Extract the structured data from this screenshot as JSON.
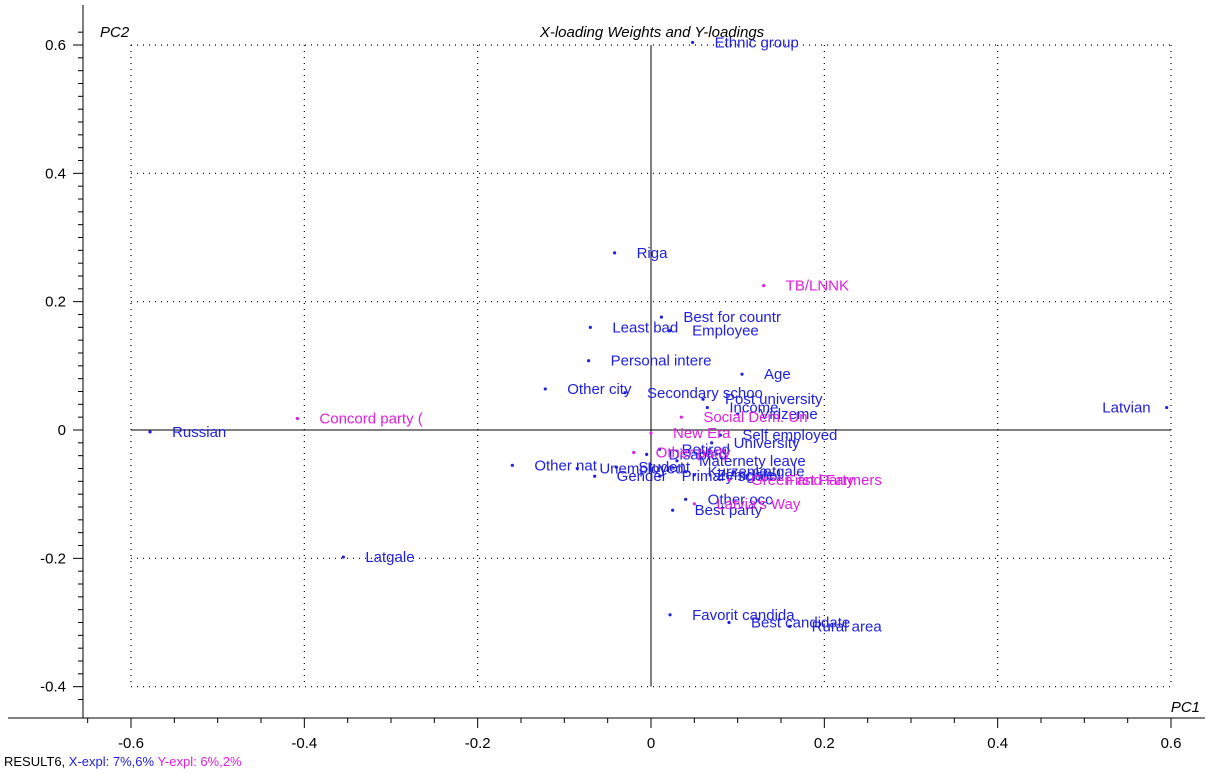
{
  "chart_data": {
    "type": "scatter",
    "title": "X-loading Weights and Y-loadings",
    "xlabel": "PC1",
    "ylabel": "PC2",
    "xlim": [
      -0.66,
      0.62
    ],
    "ylim": [
      -0.42,
      0.62
    ],
    "xticks": [
      -0.6,
      -0.4,
      -0.2,
      0,
      0.2,
      0.4,
      0.6
    ],
    "xtick_labels": [
      "-0.6",
      "-0.4",
      "-0.2",
      "0",
      "0.2",
      "0.4",
      "0.6"
    ],
    "yticks": [
      -0.4,
      -0.2,
      0,
      0.2,
      0.4,
      0.6
    ],
    "ytick_labels": [
      "-0.4",
      "-0.2",
      "0",
      "0.2",
      "0.4",
      "0.6"
    ],
    "grid": true,
    "colors": {
      "x": "#2020e0",
      "y": "#e020e0"
    },
    "series": [
      {
        "name": "X-expl",
        "color": "#2020e0",
        "points": [
          {
            "label": "Ethnic group",
            "x": 0.048,
            "y": 0.604
          },
          {
            "label": "Riga",
            "x": -0.042,
            "y": 0.276
          },
          {
            "label": "Best for countr",
            "x": 0.012,
            "y": 0.176
          },
          {
            "label": "Least bad",
            "x": -0.07,
            "y": 0.16
          },
          {
            "label": "Employee",
            "x": 0.022,
            "y": 0.155
          },
          {
            "label": "Personal intere",
            "x": -0.072,
            "y": 0.108
          },
          {
            "label": "Age",
            "x": 0.105,
            "y": 0.087
          },
          {
            "label": "Other city",
            "x": -0.122,
            "y": 0.064
          },
          {
            "label": "Secondary schoo",
            "x": -0.03,
            "y": 0.058
          },
          {
            "label": "Post university",
            "x": 0.06,
            "y": 0.048
          },
          {
            "label": "Income",
            "x": 0.065,
            "y": 0.035
          },
          {
            "label": "Vidzeme",
            "x": 0.1,
            "y": 0.025
          },
          {
            "label": "Latvian",
            "x": 0.595,
            "y": 0.035
          },
          {
            "label": "Russian",
            "x": -0.578,
            "y": -0.003
          },
          {
            "label": "Self employed",
            "x": 0.08,
            "y": -0.008
          },
          {
            "label": "University",
            "x": 0.07,
            "y": -0.02
          },
          {
            "label": "Retired",
            "x": 0.01,
            "y": -0.03
          },
          {
            "label": "Disabled",
            "x": -0.005,
            "y": -0.038
          },
          {
            "label": "Maternety leave",
            "x": 0.03,
            "y": -0.048
          },
          {
            "label": "Other nat",
            "x": -0.16,
            "y": -0.055
          },
          {
            "label": "Unemployed",
            "x": -0.085,
            "y": -0.06
          },
          {
            "label": "Student",
            "x": -0.04,
            "y": -0.058
          },
          {
            "label": "Kurzeme",
            "x": 0.04,
            "y": -0.065
          },
          {
            "label": "Latgale",
            "x": 0.095,
            "y": -0.065
          },
          {
            "label": "Gender",
            "x": -0.065,
            "y": -0.072
          },
          {
            "label": "Primary school",
            "x": 0.01,
            "y": -0.072
          },
          {
            "label": "Zemgale",
            "x": 0.05,
            "y": -0.07
          },
          {
            "label": "Other occ",
            "x": 0.04,
            "y": -0.108
          },
          {
            "label": "Best party",
            "x": 0.025,
            "y": -0.125
          },
          {
            "label": "Latgale",
            "x": -0.355,
            "y": -0.198
          },
          {
            "label": "Favorit candida",
            "x": 0.022,
            "y": -0.288
          },
          {
            "label": "Best candidate",
            "x": 0.09,
            "y": -0.3
          },
          {
            "label": "Rural area",
            "x": 0.16,
            "y": -0.306
          }
        ]
      },
      {
        "name": "Y-expl",
        "color": "#e020e0",
        "points": [
          {
            "label": "TB/LNNK",
            "x": 0.13,
            "y": 0.225
          },
          {
            "label": "Concord party (",
            "x": -0.408,
            "y": 0.018
          },
          {
            "label": "Social Dem. Un",
            "x": 0.035,
            "y": 0.02
          },
          {
            "label": "New Era",
            "x": 0.0,
            "y": -0.005
          },
          {
            "label": "Other party",
            "x": -0.02,
            "y": -0.035
          },
          {
            "label": "Green and Farmers",
            "x": 0.09,
            "y": -0.078
          },
          {
            "label": "First Party",
            "x": 0.13,
            "y": -0.078
          },
          {
            "label": "Latvia's Way",
            "x": 0.05,
            "y": -0.115
          }
        ]
      }
    ]
  },
  "footer": {
    "result": "RESULT6, ",
    "xexpl": "X-expl: 7%,6%",
    "yexpl": "Y-expl: 6%,2%"
  }
}
